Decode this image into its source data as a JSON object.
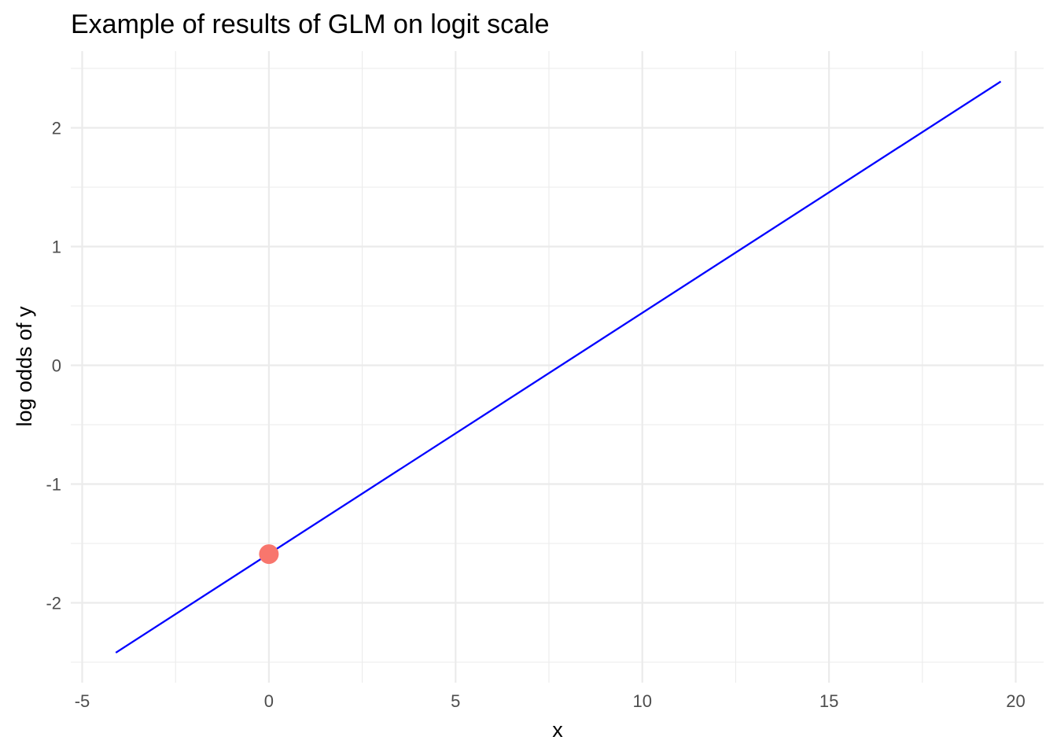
{
  "chart_data": {
    "type": "line",
    "title": "Example of results of GLM on logit scale",
    "xlabel": "x",
    "ylabel": "log odds of y",
    "xlim": [
      -5,
      20
    ],
    "ylim": [
      -2.5,
      2.5
    ],
    "x_ticks": [
      "-5",
      "0",
      "5",
      "10",
      "15",
      "20"
    ],
    "y_ticks": [
      "-2",
      "-1",
      "0",
      "1",
      "2"
    ],
    "grid": true,
    "legend": "none",
    "series": [
      {
        "type": "line",
        "color": "#0000ff",
        "x": [
          -4.1,
          19.6
        ],
        "y": [
          -2.42,
          2.39
        ]
      },
      {
        "type": "point",
        "color": "#f8766d",
        "x": [
          0
        ],
        "y": [
          -1.59
        ]
      }
    ]
  }
}
